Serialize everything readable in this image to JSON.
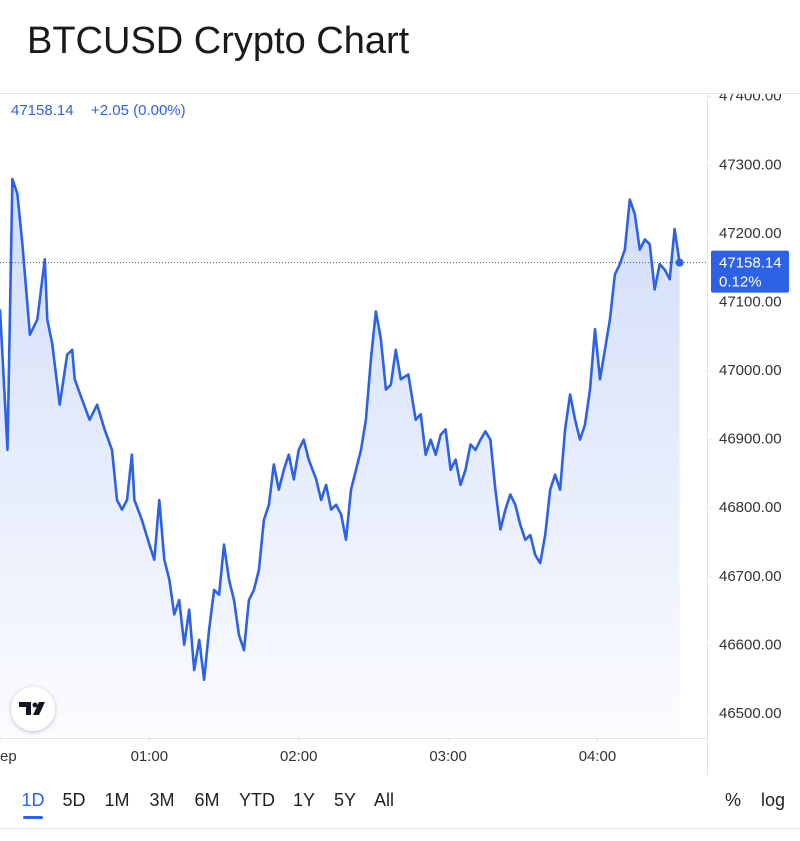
{
  "chart_data": {
    "type": "area",
    "title": "BTCUSD Crypto Chart",
    "change": "+2.05 (0.00%)",
    "badge_change": "0.12%",
    "color": "#2e62e6",
    "x": [
      0,
      3,
      5,
      7,
      9,
      12,
      15,
      18,
      19,
      21,
      24,
      27,
      29,
      30,
      33,
      36,
      39,
      42,
      45,
      47,
      49,
      51,
      53,
      54,
      57,
      60,
      62,
      64,
      66,
      68,
      70,
      72,
      74,
      76,
      78,
      80,
      82,
      84,
      86,
      88,
      90,
      92,
      94,
      96,
      98,
      100,
      102,
      104,
      106,
      108,
      110,
      112,
      114,
      116,
      118,
      120,
      122,
      124,
      127,
      129,
      131,
      133,
      135,
      137,
      139,
      141,
      143,
      145,
      147,
      149,
      151,
      153,
      155,
      157,
      159,
      161,
      164,
      167,
      169,
      171,
      173,
      175,
      177,
      179,
      181,
      183,
      185,
      187,
      189,
      191,
      193,
      195,
      197,
      199,
      201,
      203,
      205,
      207,
      209,
      211,
      213,
      215,
      217,
      219,
      221,
      223,
      225,
      227,
      229,
      231,
      233,
      235,
      237,
      239,
      241,
      243,
      245,
      247,
      249,
      251,
      253,
      255,
      257,
      259,
      261,
      263,
      265,
      267,
      269,
      271,
      273
    ],
    "values": [
      47090,
      46885,
      47280,
      47258,
      47185,
      47053,
      47075,
      47163,
      47075,
      47039,
      46951,
      47024,
      47031,
      46988,
      46958,
      46929,
      46951,
      46915,
      46885,
      46812,
      46798,
      46812,
      46878,
      46812,
      46783,
      46747,
      46725,
      46812,
      46725,
      46696,
      46645,
      46666,
      46601,
      46652,
      46564,
      46608,
      46550,
      46623,
      46681,
      46674,
      46747,
      46696,
      46666,
      46615,
      46593,
      46666,
      46681,
      46710,
      46783,
      46805,
      46864,
      46827,
      46856,
      46878,
      46842,
      46885,
      46900,
      46871,
      46842,
      46812,
      46834,
      46798,
      46805,
      46791,
      46754,
      46827,
      46856,
      46885,
      46929,
      47017,
      47087,
      47046,
      46973,
      46980,
      47031,
      46988,
      46995,
      46929,
      46937,
      46878,
      46900,
      46878,
      46907,
      46915,
      46856,
      46871,
      46834,
      46856,
      46893,
      46885,
      46900,
      46912,
      46900,
      46827,
      46769,
      46798,
      46820,
      46805,
      46776,
      46754,
      46761,
      46732,
      46720,
      46761,
      46827,
      46849,
      46827,
      46915,
      46966,
      46929,
      46900,
      46922,
      46973,
      47061,
      46988,
      47031,
      47075,
      47141,
      47156,
      47177,
      47250,
      47229,
      47177,
      47192,
      47185,
      47119,
      47156,
      47148,
      47134,
      47207,
      47158.14
    ],
    "xlim": [
      0,
      284
    ],
    "xticks": [
      {
        "value": 0,
        "label": "ep"
      },
      {
        "value": 60,
        "label": "01:00"
      },
      {
        "value": 120,
        "label": "02:00"
      },
      {
        "value": 180,
        "label": "03:00"
      },
      {
        "value": 240,
        "label": "04:00"
      }
    ],
    "ylim": [
      46465,
      47404
    ],
    "yticks": [
      {
        "value": 46500,
        "label": "46500.00"
      },
      {
        "value": 46600,
        "label": "46600.00"
      },
      {
        "value": 46700,
        "label": "46700.00"
      },
      {
        "value": 46800,
        "label": "46800.00"
      },
      {
        "value": 46900,
        "label": "46900.00"
      },
      {
        "value": 47000,
        "label": "47000.00"
      },
      {
        "value": 47100,
        "label": "47100.00"
      },
      {
        "value": 47200,
        "label": "47200.00"
      },
      {
        "value": 47300,
        "label": "47300.00"
      },
      {
        "value": 47400,
        "label": "47400.00"
      }
    ]
  },
  "range_buttons": [
    "1D",
    "5D",
    "1M",
    "3M",
    "6M",
    "YTD",
    "1Y",
    "5Y",
    "All"
  ],
  "scale_buttons": [
    "%",
    "log"
  ]
}
